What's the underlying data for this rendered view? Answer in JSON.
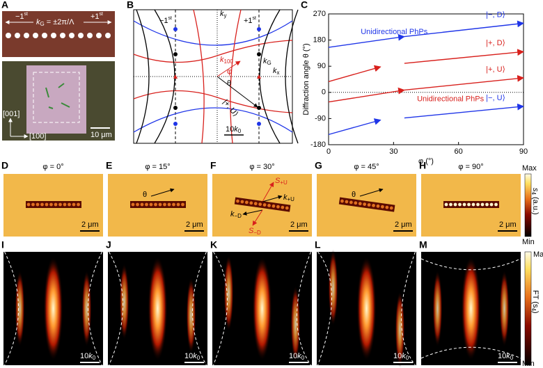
{
  "panel_a": {
    "label": "A",
    "minus_order": {
      "base": "−1",
      "sup": "st"
    },
    "kg": {
      "base": "k",
      "sub": "G",
      "rest": " = ±2π/Λ"
    },
    "plus_order": {
      "base": "+1",
      "sup": "st"
    },
    "axis_001": "[001]",
    "axis_100": "[100]",
    "scale": "10 μm"
  },
  "panel_b": {
    "label": "B",
    "minus_order": {
      "base": "−1",
      "sup": "st"
    },
    "plus_order": {
      "base": "+1",
      "sup": "st"
    },
    "ky": {
      "base": "k",
      "sub": "y"
    },
    "kx": {
      "base": "k",
      "sub": "x"
    },
    "kg": {
      "base": "k",
      "sub": "G"
    },
    "k100": {
      "base": "k",
      "sub": "100"
    },
    "phi": "φ",
    "theta": "θ",
    "state": "|+, U⟩",
    "scale": {
      "base": "10",
      "italic": "k",
      "sub": "0"
    }
  },
  "chart_data": {
    "type": "line",
    "label": "C",
    "xlabel": "φ (°)",
    "ylabel": "Diffraction angle θ (°)",
    "xlim": [
      0,
      90
    ],
    "xticks": [
      0,
      30,
      60,
      90
    ],
    "ylim": [
      -180,
      270
    ],
    "yticks": [
      -180,
      -90,
      0,
      90,
      180,
      270
    ],
    "zero_line": true,
    "series": [
      {
        "name": "|−, D⟩",
        "color": "#1f35e8",
        "x": [
          0,
          35,
          90
        ],
        "values": [
          155,
          192,
          238
        ]
      },
      {
        "color": "#d8201c",
        "x": [
          0,
          24
        ],
        "values": [
          37,
          88
        ]
      },
      {
        "name": "|+, D⟩",
        "color": "#d8201c",
        "x": [
          35,
          90
        ],
        "values": [
          100,
          140
        ]
      },
      {
        "name": "|+, U⟩",
        "color": "#d8201c",
        "x": [
          0,
          35,
          90
        ],
        "values": [
          -33,
          8,
          50
        ]
      },
      {
        "color": "#1f35e8",
        "x": [
          0,
          24
        ],
        "values": [
          -145,
          -95
        ]
      },
      {
        "name": "|−, U⟩",
        "color": "#1f35e8",
        "x": [
          35,
          90
        ],
        "values": [
          -88,
          -48
        ]
      }
    ],
    "annotations": [
      {
        "text": "Unidirectional PhPs",
        "color": "#1f35e8"
      },
      {
        "text": "Unidirectional PhPs",
        "color": "#d8201c"
      }
    ]
  },
  "panels_real": [
    {
      "label": "D",
      "title": "φ = 0°",
      "scale": "2 μm"
    },
    {
      "label": "E",
      "title": "φ = 15°",
      "scale": "2 μm"
    },
    {
      "label": "F",
      "title": "φ = 30°",
      "scale": "2 μm"
    },
    {
      "label": "G",
      "title": "φ = 45°",
      "scale": "2 μm"
    },
    {
      "label": "H",
      "title": "φ = 90°",
      "scale": "2 μm"
    }
  ],
  "panel_e_theta": "θ",
  "panel_g_theta": "θ",
  "panel_f_labels": {
    "s_plus_u": {
      "base": "S",
      "sub": "+U"
    },
    "k_plus_u": {
      "base": "k",
      "sub": "+U"
    },
    "k_minus_d": {
      "base": "k",
      "sub": "−D"
    },
    "s_minus_d": {
      "base": "S",
      "sub": "−D"
    }
  },
  "colorbar_real": {
    "max": "Max",
    "min": "Min",
    "label": {
      "base": "s",
      "sub": "4",
      "rest": " (a.u.)"
    }
  },
  "panels_ft": [
    {
      "label": "I",
      "scale": {
        "base": "10",
        "italic": "k",
        "sub": "0"
      }
    },
    {
      "label": "J",
      "scale": {
        "base": "10",
        "italic": "k",
        "sub": "0"
      }
    },
    {
      "label": "K",
      "scale": {
        "base": "10",
        "italic": "k",
        "sub": "0"
      }
    },
    {
      "label": "L",
      "scale": {
        "base": "10",
        "italic": "k",
        "sub": "0"
      }
    },
    {
      "label": "M",
      "scale": {
        "base": "10",
        "italic": "k",
        "sub": "0"
      }
    }
  ],
  "colorbar_ft": {
    "max": "Max",
    "min": "Min",
    "label": {
      "base": "FT (s",
      "sub": "4",
      "rest": ")"
    }
  }
}
